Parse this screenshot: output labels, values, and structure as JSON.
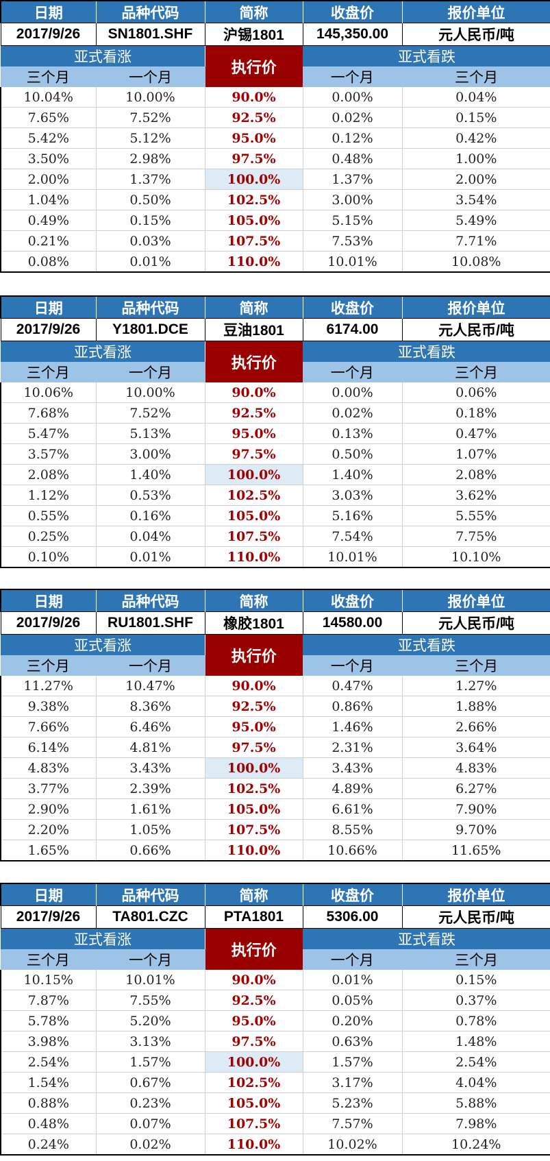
{
  "labels": {
    "date": "日期",
    "code": "品种代码",
    "name": "简称",
    "close": "收盘价",
    "unit": "报价单位",
    "call": "亚式看涨",
    "put": "亚式看跌",
    "strike": "执行价",
    "three_month": "三个月",
    "one_month": "一个月"
  },
  "tables": [
    {
      "date": "2017/9/26",
      "code": "SN1801.SHF",
      "name": "沪锡1801",
      "close": "145,350.00",
      "unit": "元人民币/吨",
      "rows": [
        {
          "call3": "10.04%",
          "call1": "10.00%",
          "strike": "90.0%",
          "put1": "0.00%",
          "put3": "0.04%"
        },
        {
          "call3": "7.65%",
          "call1": "7.52%",
          "strike": "92.5%",
          "put1": "0.02%",
          "put3": "0.15%"
        },
        {
          "call3": "5.42%",
          "call1": "5.12%",
          "strike": "95.0%",
          "put1": "0.12%",
          "put3": "0.42%"
        },
        {
          "call3": "3.50%",
          "call1": "2.98%",
          "strike": "97.5%",
          "put1": "0.48%",
          "put3": "1.00%"
        },
        {
          "call3": "2.00%",
          "call1": "1.37%",
          "strike": "100.0%",
          "put1": "1.37%",
          "put3": "2.00%"
        },
        {
          "call3": "1.04%",
          "call1": "0.50%",
          "strike": "102.5%",
          "put1": "3.00%",
          "put3": "3.54%"
        },
        {
          "call3": "0.49%",
          "call1": "0.15%",
          "strike": "105.0%",
          "put1": "5.15%",
          "put3": "5.49%"
        },
        {
          "call3": "0.21%",
          "call1": "0.03%",
          "strike": "107.5%",
          "put1": "7.53%",
          "put3": "7.71%"
        },
        {
          "call3": "0.08%",
          "call1": "0.01%",
          "strike": "110.0%",
          "put1": "10.01%",
          "put3": "10.08%"
        }
      ]
    },
    {
      "date": "2017/9/26",
      "code": "Y1801.DCE",
      "name": "豆油1801",
      "close": "6174.00",
      "unit": "元人民币/吨",
      "rows": [
        {
          "call3": "10.06%",
          "call1": "10.00%",
          "strike": "90.0%",
          "put1": "0.00%",
          "put3": "0.06%"
        },
        {
          "call3": "7.68%",
          "call1": "7.52%",
          "strike": "92.5%",
          "put1": "0.02%",
          "put3": "0.18%"
        },
        {
          "call3": "5.47%",
          "call1": "5.13%",
          "strike": "95.0%",
          "put1": "0.13%",
          "put3": "0.47%"
        },
        {
          "call3": "3.57%",
          "call1": "3.00%",
          "strike": "97.5%",
          "put1": "0.50%",
          "put3": "1.07%"
        },
        {
          "call3": "2.08%",
          "call1": "1.40%",
          "strike": "100.0%",
          "put1": "1.40%",
          "put3": "2.08%"
        },
        {
          "call3": "1.12%",
          "call1": "0.53%",
          "strike": "102.5%",
          "put1": "3.03%",
          "put3": "3.62%"
        },
        {
          "call3": "0.55%",
          "call1": "0.16%",
          "strike": "105.0%",
          "put1": "5.16%",
          "put3": "5.55%"
        },
        {
          "call3": "0.25%",
          "call1": "0.04%",
          "strike": "107.5%",
          "put1": "7.54%",
          "put3": "7.75%"
        },
        {
          "call3": "0.10%",
          "call1": "0.01%",
          "strike": "110.0%",
          "put1": "10.01%",
          "put3": "10.10%"
        }
      ]
    },
    {
      "date": "2017/9/26",
      "code": "RU1801.SHF",
      "name": "橡胶1801",
      "close": "14580.00",
      "unit": "元人民币/吨",
      "rows": [
        {
          "call3": "11.27%",
          "call1": "10.47%",
          "strike": "90.0%",
          "put1": "0.47%",
          "put3": "1.27%"
        },
        {
          "call3": "9.38%",
          "call1": "8.36%",
          "strike": "92.5%",
          "put1": "0.86%",
          "put3": "1.88%"
        },
        {
          "call3": "7.66%",
          "call1": "6.46%",
          "strike": "95.0%",
          "put1": "1.46%",
          "put3": "2.66%"
        },
        {
          "call3": "6.14%",
          "call1": "4.81%",
          "strike": "97.5%",
          "put1": "2.31%",
          "put3": "3.64%"
        },
        {
          "call3": "4.83%",
          "call1": "3.43%",
          "strike": "100.0%",
          "put1": "3.43%",
          "put3": "4.83%"
        },
        {
          "call3": "3.77%",
          "call1": "2.39%",
          "strike": "102.5%",
          "put1": "4.89%",
          "put3": "6.27%"
        },
        {
          "call3": "2.90%",
          "call1": "1.61%",
          "strike": "105.0%",
          "put1": "6.61%",
          "put3": "7.90%"
        },
        {
          "call3": "2.20%",
          "call1": "1.05%",
          "strike": "107.5%",
          "put1": "8.55%",
          "put3": "9.70%"
        },
        {
          "call3": "1.65%",
          "call1": "0.66%",
          "strike": "110.0%",
          "put1": "10.66%",
          "put3": "11.65%"
        }
      ]
    },
    {
      "date": "2017/9/26",
      "code": "TA801.CZC",
      "name": "PTA1801",
      "close": "5306.00",
      "unit": "元人民币/吨",
      "rows": [
        {
          "call3": "10.15%",
          "call1": "10.01%",
          "strike": "90.0%",
          "put1": "0.01%",
          "put3": "0.15%"
        },
        {
          "call3": "7.87%",
          "call1": "7.55%",
          "strike": "92.5%",
          "put1": "0.05%",
          "put3": "0.37%"
        },
        {
          "call3": "5.78%",
          "call1": "5.20%",
          "strike": "95.0%",
          "put1": "0.20%",
          "put3": "0.78%"
        },
        {
          "call3": "3.98%",
          "call1": "3.13%",
          "strike": "97.5%",
          "put1": "0.63%",
          "put3": "1.48%"
        },
        {
          "call3": "2.54%",
          "call1": "1.57%",
          "strike": "100.0%",
          "put1": "1.57%",
          "put3": "2.54%"
        },
        {
          "call3": "1.54%",
          "call1": "0.67%",
          "strike": "102.5%",
          "put1": "3.17%",
          "put3": "4.04%"
        },
        {
          "call3": "0.88%",
          "call1": "0.23%",
          "strike": "105.0%",
          "put1": "5.23%",
          "put3": "5.88%"
        },
        {
          "call3": "0.48%",
          "call1": "0.07%",
          "strike": "107.5%",
          "put1": "7.57%",
          "put3": "7.98%"
        },
        {
          "call3": "0.24%",
          "call1": "0.02%",
          "strike": "110.0%",
          "put1": "10.02%",
          "put3": "10.24%"
        }
      ]
    }
  ]
}
